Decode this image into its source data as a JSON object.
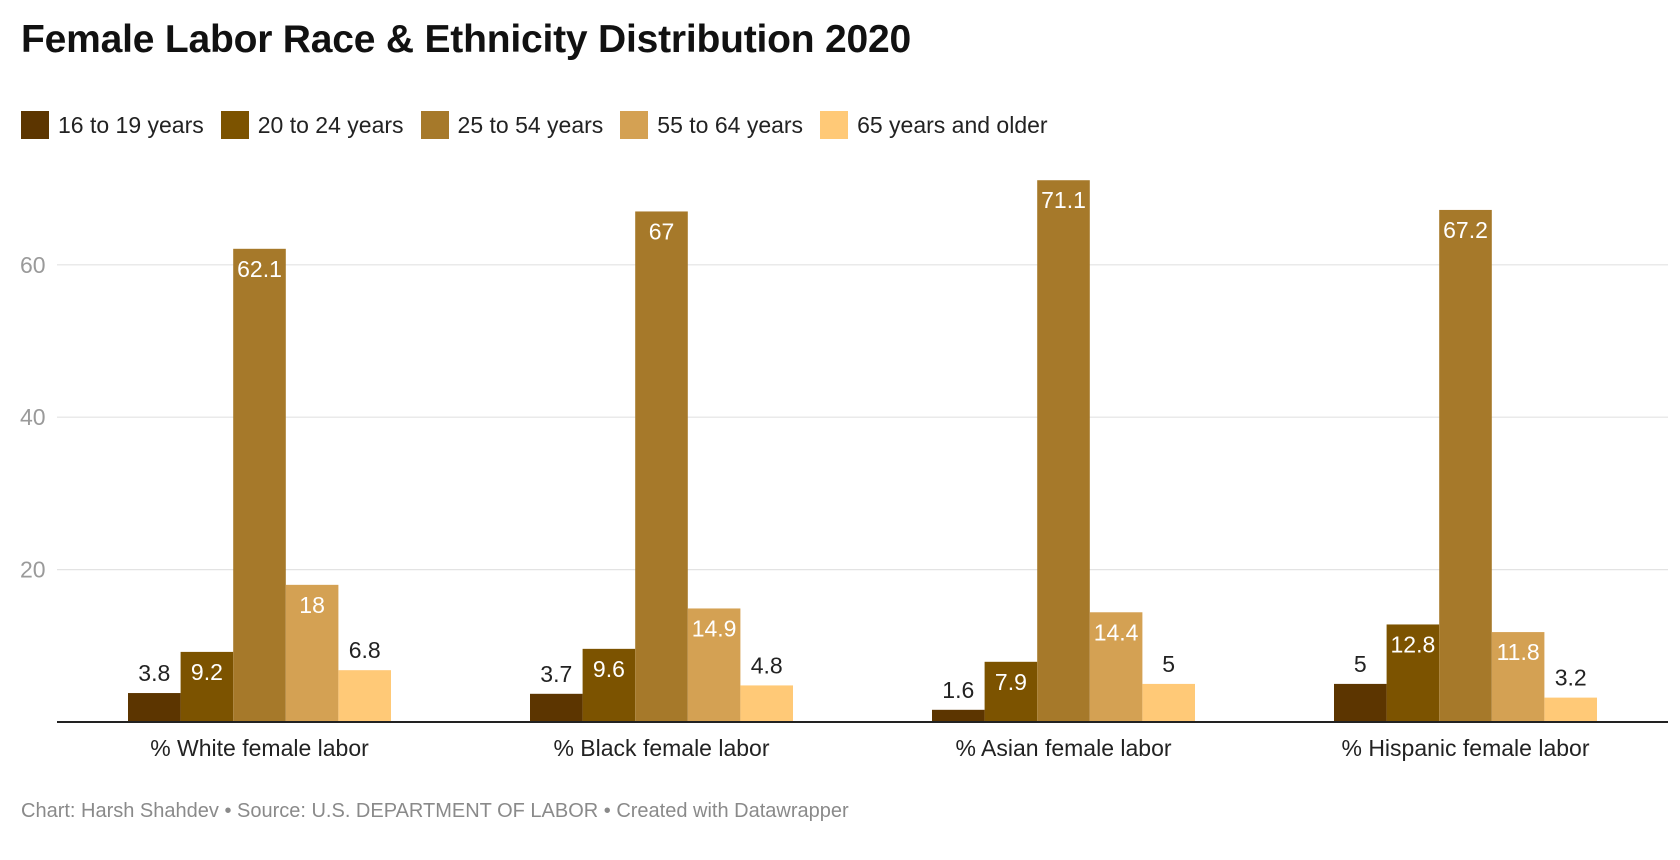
{
  "title": "Female Labor Race & Ethnicity Distribution 2020",
  "footer": "Chart: Harsh Shahdev • Source: U.S. DEPARTMENT OF LABOR • Created with Datawrapper",
  "chart_data": {
    "type": "bar",
    "title": "Female Labor Race & Ethnicity Distribution 2020",
    "categories": [
      "% White female labor",
      "% Black female labor",
      "% Asian female labor",
      "% Hispanic female labor"
    ],
    "series": [
      {
        "name": "16 to 19 years",
        "color": "#5c3500",
        "values": [
          3.8,
          3.7,
          1.6,
          5
        ]
      },
      {
        "name": "20 to 24 years",
        "color": "#7c5300",
        "values": [
          9.2,
          9.6,
          7.9,
          12.8
        ]
      },
      {
        "name": "25 to 54 years",
        "color": "#a6792a",
        "values": [
          62.1,
          67,
          71.1,
          67.2
        ]
      },
      {
        "name": "55 to 64 years",
        "color": "#d4a153",
        "values": [
          18,
          14.9,
          14.4,
          11.8
        ]
      },
      {
        "name": "65 years and older",
        "color": "#ffc977",
        "values": [
          6.8,
          4.8,
          5,
          3.2
        ]
      }
    ],
    "yticks": [
      20,
      40,
      60
    ],
    "ylim": [
      0,
      75
    ],
    "grid": true,
    "legend_position": "top-left"
  }
}
